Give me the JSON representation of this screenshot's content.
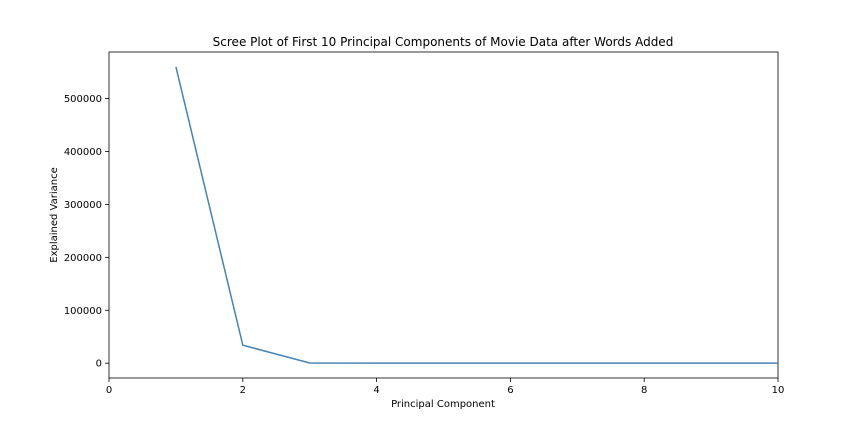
{
  "chart_data": {
    "type": "line",
    "title": "Scree Plot of First 10 Principal Components of Movie Data after Words Added",
    "xlabel": "Principal Component",
    "ylabel": "Explained Variance",
    "xlim": [
      0,
      10
    ],
    "ylim": [
      -28000,
      588000
    ],
    "xticks": [
      0,
      2,
      4,
      6,
      8,
      10
    ],
    "yticks": [
      0,
      100000,
      200000,
      300000,
      400000,
      500000
    ],
    "grid": false,
    "series": [
      {
        "color": "#4682b4",
        "x": [
          1,
          2,
          3,
          4,
          5,
          6,
          7,
          8,
          9,
          10
        ],
        "y": [
          560000,
          34000,
          300,
          200,
          150,
          120,
          100,
          90,
          80,
          70
        ]
      }
    ]
  }
}
